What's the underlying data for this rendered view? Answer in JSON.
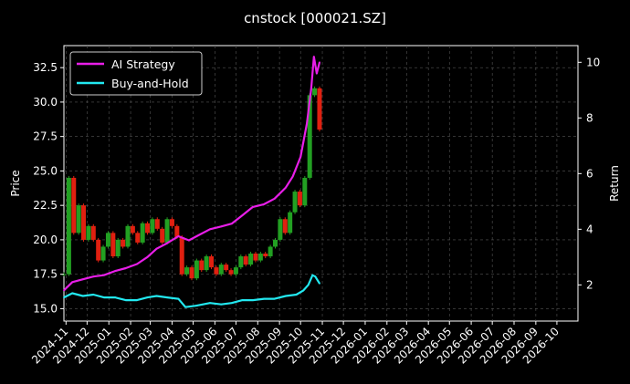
{
  "chart_data": {
    "type": "line",
    "title": "cnstock [000021.SZ]",
    "xlabel": "",
    "ylabel": "Price",
    "y2label": "Return",
    "grid": true,
    "legend_position": "top-left",
    "x_ticks": [
      "2024-11",
      "2024-12",
      "2025-01",
      "2025-02",
      "2025-03",
      "2025-04",
      "2025-05",
      "2025-06",
      "2025-07",
      "2025-08",
      "2025-09",
      "2025-10",
      "2025-11",
      "2025-12",
      "2026-01",
      "2026-02",
      "2026-03",
      "2026-04",
      "2026-05",
      "2026-06",
      "2026-07",
      "2026-08",
      "2026-09",
      "2026-10"
    ],
    "xlim": [
      "2024-10-29",
      "2026-10-31"
    ],
    "y_ticks": [
      "15.0",
      "17.5",
      "20.0",
      "22.5",
      "25.0",
      "27.5",
      "30.0",
      "32.5"
    ],
    "ylim": [
      14.1,
      34.1
    ],
    "y2_ticks": [
      "2",
      "4",
      "6",
      "8",
      "10"
    ],
    "y2lim": [
      0.7,
      10.6
    ],
    "price_series": {
      "name": "Price",
      "up_color": "#22a022",
      "down_color": "#e02010",
      "x": [
        "2024-10-29",
        "2024-11-05",
        "2024-11-12",
        "2024-11-19",
        "2024-11-26",
        "2024-12-03",
        "2024-12-10",
        "2024-12-17",
        "2024-12-24",
        "2024-12-31",
        "2025-01-07",
        "2025-01-14",
        "2025-01-21",
        "2025-01-28",
        "2025-02-04",
        "2025-02-11",
        "2025-02-18",
        "2025-02-25",
        "2025-03-04",
        "2025-03-11",
        "2025-03-18",
        "2025-03-25",
        "2025-04-01",
        "2025-04-08",
        "2025-04-15",
        "2025-04-22",
        "2025-04-29",
        "2025-05-06",
        "2025-05-13",
        "2025-05-20",
        "2025-05-27",
        "2025-06-03",
        "2025-06-10",
        "2025-06-17",
        "2025-06-24",
        "2025-07-01",
        "2025-07-08",
        "2025-07-15",
        "2025-07-22",
        "2025-07-29",
        "2025-08-05",
        "2025-08-12",
        "2025-08-19",
        "2025-08-26",
        "2025-09-02",
        "2025-09-09",
        "2025-09-16",
        "2025-09-23",
        "2025-09-30",
        "2025-10-07",
        "2025-10-14",
        "2025-10-21",
        "2025-10-28"
      ],
      "values": [
        17.5,
        24.5,
        20.5,
        22.5,
        20.0,
        21.0,
        20.0,
        18.5,
        19.5,
        20.5,
        18.8,
        20.0,
        19.5,
        21.0,
        20.5,
        19.8,
        21.2,
        20.5,
        21.5,
        20.8,
        19.8,
        21.5,
        21.0,
        20.2,
        17.5,
        18.0,
        17.2,
        18.5,
        17.8,
        18.8,
        18.0,
        17.5,
        18.2,
        17.8,
        17.5,
        18.0,
        18.8,
        18.2,
        19.0,
        18.5,
        19.0,
        18.8,
        19.5,
        20.0,
        21.5,
        20.5,
        22.0,
        23.5,
        22.5,
        24.5,
        30.5,
        31.0,
        28.0
      ]
    },
    "series": [
      {
        "name": "AI Strategy",
        "axis": "right",
        "color": "#e81ee8",
        "x": [
          "2024-10-29",
          "2024-11-10",
          "2024-11-25",
          "2024-12-10",
          "2024-12-25",
          "2025-01-10",
          "2025-01-25",
          "2025-02-10",
          "2025-02-25",
          "2025-03-10",
          "2025-03-25",
          "2025-04-10",
          "2025-04-25",
          "2025-05-10",
          "2025-05-25",
          "2025-06-10",
          "2025-06-25",
          "2025-07-10",
          "2025-07-25",
          "2025-08-10",
          "2025-08-25",
          "2025-09-10",
          "2025-09-20",
          "2025-10-01",
          "2025-10-10",
          "2025-10-16",
          "2025-10-20",
          "2025-10-24",
          "2025-10-28"
        ],
        "values": [
          1.8,
          2.1,
          2.2,
          2.3,
          2.35,
          2.5,
          2.6,
          2.75,
          3.0,
          3.3,
          3.5,
          3.75,
          3.6,
          3.8,
          4.0,
          4.1,
          4.2,
          4.5,
          4.8,
          4.9,
          5.1,
          5.5,
          5.9,
          6.6,
          7.8,
          9.0,
          10.2,
          9.6,
          10.0
        ]
      },
      {
        "name": "Buy-and-Hold",
        "axis": "right",
        "color": "#22e8f0",
        "x": [
          "2024-10-29",
          "2024-11-10",
          "2024-11-25",
          "2024-12-10",
          "2024-12-25",
          "2025-01-10",
          "2025-01-25",
          "2025-02-10",
          "2025-02-25",
          "2025-03-10",
          "2025-03-25",
          "2025-04-10",
          "2025-04-20",
          "2025-05-05",
          "2025-05-25",
          "2025-06-10",
          "2025-06-25",
          "2025-07-10",
          "2025-07-25",
          "2025-08-10",
          "2025-08-25",
          "2025-09-10",
          "2025-09-25",
          "2025-10-05",
          "2025-10-12",
          "2025-10-18",
          "2025-10-22",
          "2025-10-28"
        ],
        "values": [
          1.55,
          1.7,
          1.6,
          1.65,
          1.55,
          1.55,
          1.45,
          1.45,
          1.55,
          1.6,
          1.55,
          1.5,
          1.2,
          1.25,
          1.35,
          1.3,
          1.35,
          1.45,
          1.45,
          1.5,
          1.5,
          1.6,
          1.65,
          1.8,
          2.0,
          2.35,
          2.3,
          2.05
        ]
      }
    ]
  }
}
